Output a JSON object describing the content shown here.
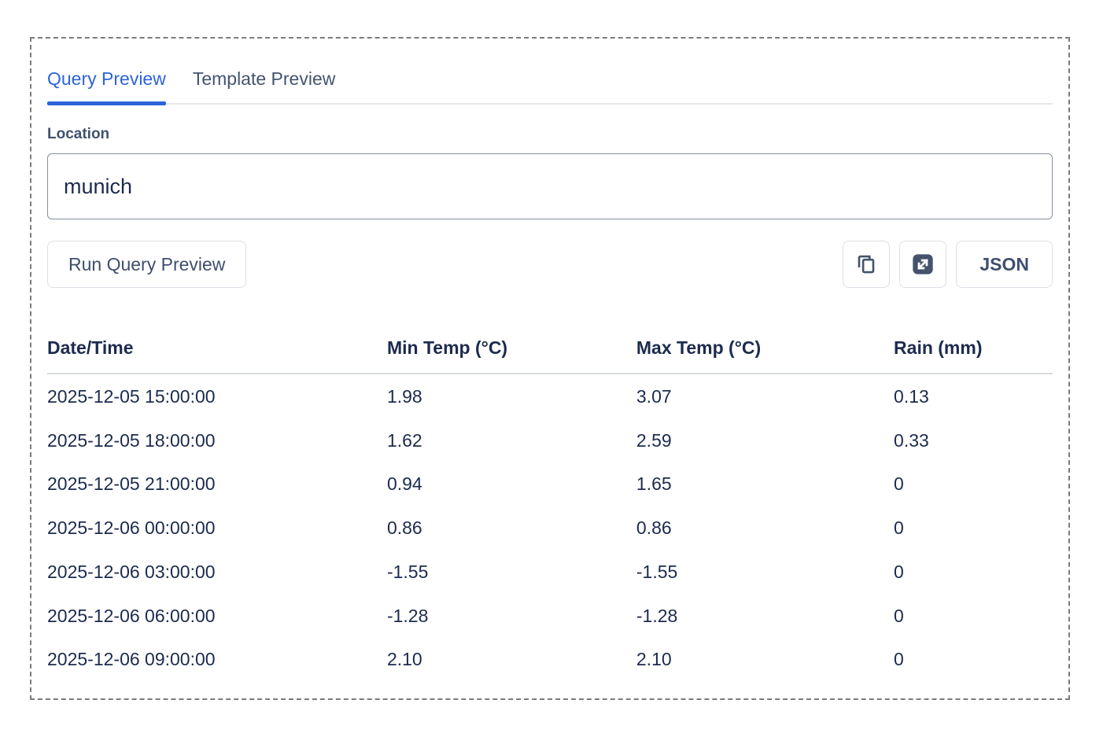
{
  "tabs": [
    {
      "label": "Query Preview",
      "active": true
    },
    {
      "label": "Template Preview",
      "active": false
    }
  ],
  "form": {
    "location_label": "Location",
    "location_value": "munich",
    "run_button_label": "Run Query Preview"
  },
  "toolbar": {
    "copy_icon": "copy-icon",
    "expand_icon": "expand-icon",
    "json_button_label": "JSON"
  },
  "table": {
    "columns": [
      "Date/Time",
      "Min Temp (°C)",
      "Max Temp (°C)",
      "Rain (mm)"
    ],
    "rows": [
      [
        "2025-12-05 15:00:00",
        "1.98",
        "3.07",
        "0.13"
      ],
      [
        "2025-12-05 18:00:00",
        "1.62",
        "2.59",
        "0.33"
      ],
      [
        "2025-12-05 21:00:00",
        "0.94",
        "1.65",
        "0"
      ],
      [
        "2025-12-06 00:00:00",
        "0.86",
        "0.86",
        "0"
      ],
      [
        "2025-12-06 03:00:00",
        "-1.55",
        "-1.55",
        "0"
      ],
      [
        "2025-12-06 06:00:00",
        "-1.28",
        "-1.28",
        "0"
      ],
      [
        "2025-12-06 09:00:00",
        "2.10",
        "2.10",
        "0"
      ]
    ]
  },
  "colors": {
    "accent_blue": "#2d63db",
    "text_dark_navy": "#1c2b4d",
    "text_slate": "#44546f",
    "button_border": "#dcdfe4",
    "input_border": "#8590a2",
    "divider": "#d8dbe0",
    "dashed_border": "#7c7c7c"
  }
}
